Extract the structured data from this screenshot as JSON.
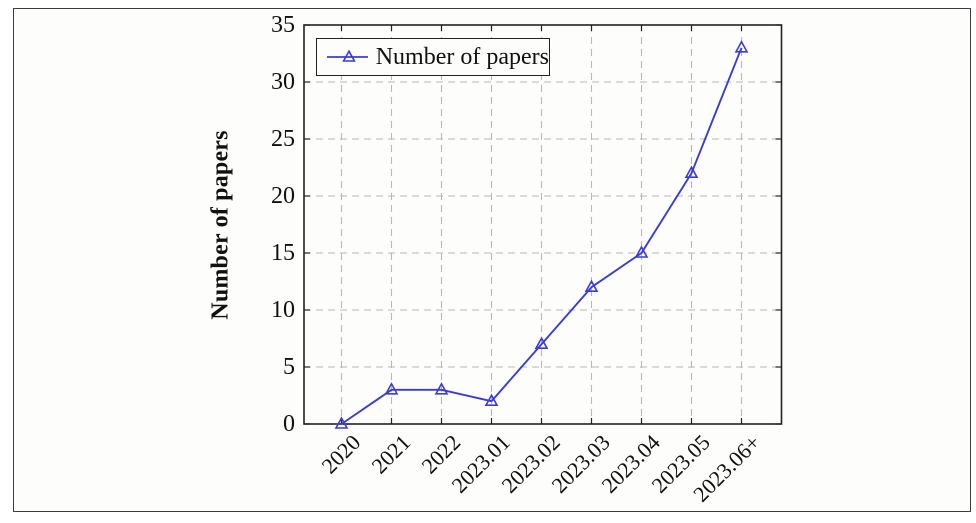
{
  "figure": {
    "y_axis_title": "Number of papers"
  },
  "legend": {
    "label": "Number of papers"
  },
  "colors": {
    "line": "#3b3bd8",
    "grid": "#b8b8b8",
    "frame": "#222222",
    "text": "#111111"
  },
  "chart_data": {
    "type": "line",
    "title": "",
    "xlabel": "",
    "ylabel": "Number of papers",
    "categories": [
      "2020",
      "2021",
      "2022",
      "2023.01",
      "2023.02",
      "2023.03",
      "2023.04",
      "2023.05",
      "2023.06+"
    ],
    "series": [
      {
        "name": "Number of papers",
        "values": [
          0,
          3,
          3,
          2,
          7,
          12,
          15,
          22,
          33
        ]
      }
    ],
    "ylim": [
      0,
      35
    ],
    "y_ticks": [
      0,
      5,
      10,
      15,
      20,
      25,
      30,
      35
    ],
    "grid": "dashed",
    "legend_position": "top-left",
    "marker": "triangle-open"
  }
}
